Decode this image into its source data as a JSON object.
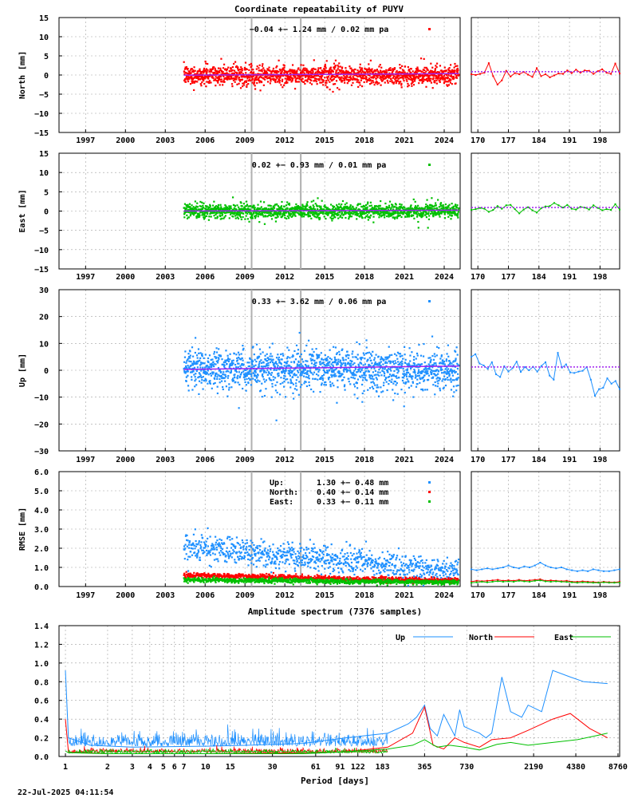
{
  "title": "Coordinate repeatability of PUYV",
  "footer": "22-Jul-2025 04:11:54",
  "colors": {
    "north": "#ff0000",
    "east": "#00c000",
    "up": "#1e90ff",
    "mean": "#a020f0",
    "grid": "#a0a0a0",
    "event": "#b0b0b0"
  },
  "main_xticks": [
    "1997",
    "2000",
    "2003",
    "2006",
    "2009",
    "2012",
    "2015",
    "2018",
    "2021",
    "2024"
  ],
  "main_xlim": [
    1995.5,
    2025.7
  ],
  "zoom_xticks": [
    "170",
    "177",
    "184",
    "191",
    "198"
  ],
  "zoom_xlim": [
    168.5,
    202.5
  ],
  "event_lines": [
    2010.0,
    2013.7
  ],
  "chart_data": [
    {
      "id": "north",
      "type": "scatter",
      "ylabel": "North [mm]",
      "ylim": [
        -15,
        15
      ],
      "yticks": [
        "15",
        "10",
        "5",
        "0",
        "−5",
        "−10",
        "−15"
      ],
      "yticks_values": [
        15,
        10,
        5,
        0,
        -5,
        -10,
        -15
      ],
      "stat": "−0.04 +− 1.24 mm /  0.02 mm pa",
      "data_start": 2004.9,
      "data_end": 2025.6,
      "mean": -0.04,
      "rate_mm_pa": 0.02,
      "std": 1.24,
      "color": "#ff0000",
      "zoom_values": [
        0.2,
        0.0,
        0.3,
        0.6,
        3.1,
        -0.3,
        -2.5,
        -1.4,
        1.1,
        -0.4,
        0.5,
        0.2,
        0.8,
        0.1,
        -0.5,
        1.8,
        -0.3,
        0.2,
        -0.6,
        -0.1,
        0.4,
        0.3,
        1.2,
        0.5,
        1.4,
        0.6,
        1.2,
        1.1,
        0.3,
        1.0,
        1.5,
        0.6,
        0.3,
        3.0,
        0.4
      ]
    },
    {
      "id": "east",
      "type": "scatter",
      "ylabel": "East [mm]",
      "ylim": [
        -15,
        15
      ],
      "yticks": [
        "15",
        "10",
        "5",
        "0",
        "−5",
        "−10",
        "−15"
      ],
      "yticks_values": [
        15,
        10,
        5,
        0,
        -5,
        -10,
        -15
      ],
      "stat": "0.02 +− 0.93 mm /  0.01 mm pa",
      "data_start": 2004.9,
      "data_end": 2025.6,
      "mean": 0.02,
      "rate_mm_pa": 0.01,
      "std": 0.93,
      "color": "#00c000",
      "zoom_values": [
        0.3,
        0.5,
        0.8,
        0.6,
        -0.2,
        0.3,
        1.3,
        0.6,
        1.5,
        1.6,
        0.5,
        -0.6,
        0.4,
        1.0,
        0.2,
        -0.4,
        0.7,
        1.2,
        1.3,
        2.1,
        1.5,
        0.9,
        1.6,
        0.6,
        0.4,
        1.1,
        0.9,
        0.4,
        1.5,
        0.8,
        0.2,
        0.5,
        0.3,
        1.8,
        0.4
      ]
    },
    {
      "id": "up",
      "type": "scatter",
      "ylabel": "Up [mm]",
      "ylim": [
        -30,
        30
      ],
      "yticks": [
        "30",
        "20",
        "10",
        "0",
        "−10",
        "−20",
        "−30"
      ],
      "yticks_values": [
        30,
        20,
        10,
        0,
        -10,
        -20,
        -30
      ],
      "stat": "0.33 +− 3.62 mm /  0.06 mm pa",
      "data_start": 2004.9,
      "data_end": 2025.6,
      "mean": 0.33,
      "rate_mm_pa": 0.06,
      "std": 3.62,
      "color": "#1e90ff",
      "zoom_values": [
        5.0,
        6.0,
        2.5,
        1.8,
        0.5,
        3.0,
        -1.5,
        -2.5,
        1.5,
        -0.5,
        0.8,
        3.2,
        -0.6,
        1.2,
        0.0,
        1.3,
        -0.5,
        1.6,
        3.0,
        -2.0,
        -3.5,
        6.5,
        1.0,
        2.2,
        -0.8,
        -1.0,
        -0.5,
        -0.2,
        1.2,
        -3.5,
        -9.5,
        -7.0,
        -6.5,
        -3.0,
        -5.0,
        -4.0,
        -7.0
      ]
    },
    {
      "id": "rmse",
      "type": "scatter",
      "ylabel": "RMSE [mm]",
      "ylim": [
        0,
        6
      ],
      "yticks": [
        "6.0",
        "5.0",
        "4.0",
        "3.0",
        "2.0",
        "1.0",
        "0.0"
      ],
      "yticks_values": [
        6,
        5,
        4,
        3,
        2,
        1,
        0
      ],
      "legend": [
        {
          "name": "Up:",
          "text": "1.30 +− 0.48 mm",
          "color": "#1e90ff"
        },
        {
          "name": "North:",
          "text": "0.40 +− 0.14 mm",
          "color": "#ff0000"
        },
        {
          "name": "East:",
          "text": "0.33 +− 0.11 mm",
          "color": "#00c000"
        }
      ],
      "zoom_series": [
        {
          "name": "Up",
          "color": "#1e90ff",
          "values": [
            0.9,
            0.85,
            0.9,
            0.95,
            0.9,
            0.95,
            1.0,
            1.1,
            1.0,
            0.95,
            1.05,
            1.0,
            1.1,
            1.25,
            1.1,
            1.0,
            0.95,
            1.0,
            0.9,
            0.85,
            0.8,
            0.85,
            0.8,
            0.9,
            0.85,
            0.8,
            0.8,
            0.85,
            0.9
          ]
        },
        {
          "name": "North",
          "color": "#ff0000",
          "values": [
            0.25,
            0.3,
            0.28,
            0.3,
            0.32,
            0.35,
            0.3,
            0.33,
            0.3,
            0.35,
            0.3,
            0.32,
            0.35,
            0.38,
            0.3,
            0.32,
            0.3,
            0.28,
            0.3,
            0.25,
            0.25,
            0.27,
            0.25,
            0.24,
            0.22,
            0.25,
            0.23,
            0.22,
            0.25
          ]
        },
        {
          "name": "East",
          "color": "#00c000",
          "values": [
            0.2,
            0.22,
            0.25,
            0.22,
            0.25,
            0.28,
            0.25,
            0.27,
            0.25,
            0.3,
            0.27,
            0.25,
            0.3,
            0.32,
            0.27,
            0.25,
            0.27,
            0.25,
            0.24,
            0.22,
            0.2,
            0.22,
            0.21,
            0.2,
            0.2,
            0.22,
            0.2,
            0.2,
            0.21
          ]
        }
      ]
    },
    {
      "id": "spectrum",
      "type": "line",
      "title": "Amplitude spectrum (7376 samples)",
      "xlabel": "Period [days]",
      "ylim": [
        0,
        1.4
      ],
      "yticks": [
        "1.4",
        "1.2",
        "1.0",
        "0.8",
        "0.6",
        "0.4",
        "0.2",
        "0.0"
      ],
      "yticks_values": [
        1.4,
        1.2,
        1.0,
        0.8,
        0.6,
        0.4,
        0.2,
        0.0
      ],
      "xlim_days": [
        0.9,
        9000
      ],
      "xticks": [
        "1",
        "2",
        "3",
        "4",
        "5",
        "6",
        "7",
        "10",
        "15",
        "30",
        "61",
        "91",
        "122",
        "183",
        "365",
        "730",
        "2190",
        "4380",
        "8760"
      ],
      "xticks_values": [
        1,
        2,
        3,
        4,
        5,
        6,
        7,
        10,
        15,
        30,
        61,
        91,
        122,
        183,
        365,
        730,
        2190,
        4380,
        8760
      ],
      "legend": [
        "Up",
        "North",
        "East"
      ],
      "series": [
        {
          "name": "Up",
          "color": "#1e90ff",
          "x": [
            1,
            1.05,
            1.5,
            3,
            10,
            20,
            50,
            100,
            200,
            280,
            320,
            365,
            400,
            450,
            500,
            550,
            600,
            650,
            700,
            800,
            900,
            1000,
            1100,
            1300,
            1500,
            1800,
            2000,
            2500,
            3000,
            4000,
            5000,
            7376
          ],
          "y": [
            0.92,
            0.2,
            0.12,
            0.1,
            0.11,
            0.12,
            0.14,
            0.2,
            0.25,
            0.35,
            0.42,
            0.55,
            0.3,
            0.22,
            0.45,
            0.33,
            0.22,
            0.5,
            0.32,
            0.28,
            0.25,
            0.2,
            0.25,
            0.85,
            0.48,
            0.42,
            0.55,
            0.48,
            0.92,
            0.85,
            0.8,
            0.78
          ]
        },
        {
          "name": "North",
          "color": "#ff0000",
          "x": [
            1,
            1.05,
            2,
            10,
            50,
            100,
            200,
            300,
            365,
            420,
            500,
            600,
            700,
            900,
            1100,
            1500,
            2000,
            3000,
            4000,
            5500,
            7376
          ],
          "y": [
            0.4,
            0.05,
            0.03,
            0.03,
            0.04,
            0.05,
            0.1,
            0.25,
            0.53,
            0.12,
            0.08,
            0.2,
            0.15,
            0.1,
            0.18,
            0.2,
            0.28,
            0.4,
            0.46,
            0.3,
            0.2
          ]
        },
        {
          "name": "East",
          "color": "#00c000",
          "x": [
            1,
            1.05,
            2,
            10,
            50,
            100,
            200,
            300,
            365,
            450,
            550,
            700,
            900,
            1200,
            1500,
            2000,
            3000,
            4500,
            6000,
            7376
          ],
          "y": [
            0.06,
            0.04,
            0.03,
            0.03,
            0.03,
            0.05,
            0.08,
            0.12,
            0.18,
            0.1,
            0.12,
            0.1,
            0.07,
            0.13,
            0.15,
            0.12,
            0.15,
            0.18,
            0.22,
            0.25
          ]
        }
      ]
    }
  ]
}
